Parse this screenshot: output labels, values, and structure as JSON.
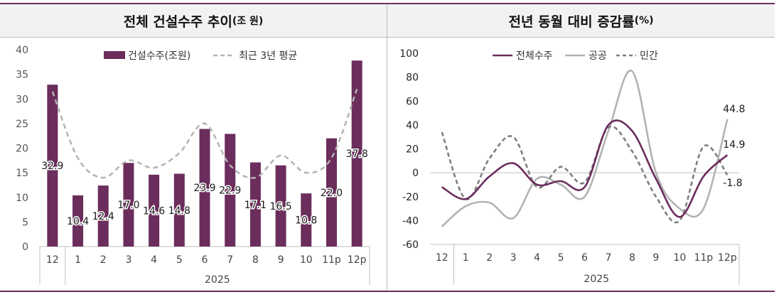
{
  "left_panel": {
    "title": "전체 건설수주 추이",
    "title_unit": "(조 원)"
  },
  "right_panel": {
    "title": "전년 동월 대비 증감률",
    "title_unit": "(%)"
  },
  "colors": {
    "accent": "#6b2d5c",
    "bar": "#6b2d5c",
    "avg_line": "#b3b3b3",
    "total_line": "#6b2d5c",
    "public_line": "#b3b3b3",
    "private_line": "#7f7f7f",
    "header_bg": "#f2f2f2"
  },
  "chart_data": [
    {
      "type": "bar",
      "title": "전체 건설수주 추이(조 원)",
      "categories": [
        "12",
        "1",
        "2",
        "3",
        "4",
        "5",
        "6",
        "7",
        "8",
        "9",
        "10",
        "11p",
        "12p"
      ],
      "year_label": "2025",
      "series": [
        {
          "name": "건설수주(조원)",
          "type": "bar",
          "values": [
            32.9,
            10.4,
            12.4,
            17.0,
            14.6,
            14.8,
            23.9,
            22.9,
            17.1,
            16.5,
            10.8,
            22.0,
            37.8
          ],
          "labels": [
            "32.9",
            "10.4",
            "12.4",
            "17.0",
            "14.6",
            "14.8",
            "23.9",
            "22.9",
            "17.1",
            "16.5",
            "10.8",
            "22.0",
            "37.8"
          ]
        },
        {
          "name": "최근 3년 평균",
          "type": "line",
          "style": "dashed",
          "values": [
            31.5,
            18.0,
            14.0,
            17.5,
            16.0,
            19.0,
            25.0,
            16.5,
            14.0,
            18.5,
            15.0,
            18.0,
            32.0
          ]
        }
      ],
      "ylim": [
        0,
        40
      ],
      "yticks": [
        0,
        5,
        10,
        15,
        20,
        25,
        30,
        35,
        40
      ],
      "legend": "top"
    },
    {
      "type": "line",
      "title": "전년 동월 대비 증감률(%)",
      "categories": [
        "12",
        "1",
        "2",
        "3",
        "4",
        "5",
        "6",
        "7",
        "8",
        "9",
        "10",
        "11p",
        "12p"
      ],
      "year_label": "2025",
      "series": [
        {
          "name": "전체수주",
          "values": [
            -12,
            -22,
            -3,
            8,
            -10,
            -7,
            -12,
            40,
            35,
            -5,
            -37,
            -3,
            14.9
          ]
        },
        {
          "name": "공공",
          "values": [
            -45,
            -28,
            -25,
            -38,
            -5,
            -10,
            -20,
            35,
            85,
            0,
            -30,
            -30,
            44.8
          ]
        },
        {
          "name": "민간",
          "values": [
            34,
            -22,
            12,
            30,
            -12,
            5,
            -8,
            38,
            18,
            -20,
            -40,
            22,
            -1.8
          ]
        }
      ],
      "end_labels": [
        "14.9",
        "44.8",
        "-1.8"
      ],
      "ylim": [
        -60,
        100
      ],
      "yticks": [
        -60,
        -40,
        -20,
        0,
        20,
        40,
        60,
        80,
        100
      ],
      "legend": "top"
    }
  ]
}
